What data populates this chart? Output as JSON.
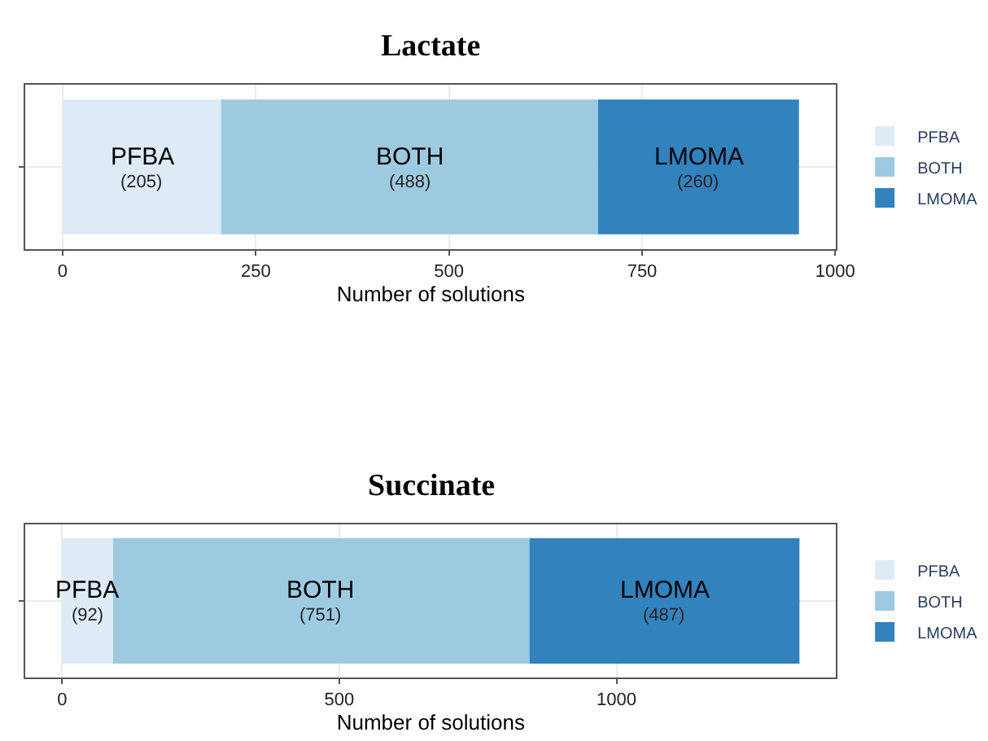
{
  "chart_data": [
    {
      "type": "bar",
      "title": "Lactate",
      "xlabel": "Number of solutions",
      "orientation": "horizontal",
      "stacked": true,
      "categories": [
        null
      ],
      "xlim": [
        -48,
        1001
      ],
      "xticks": [
        0,
        250,
        500,
        750,
        1000
      ],
      "grid": true,
      "legend": "right",
      "tick_labels": "x",
      "series": [
        {
          "name": "PFBA",
          "color": "#deebf7",
          "values": [
            205
          ],
          "value_labels": [
            "(205)"
          ]
        },
        {
          "name": "BOTH",
          "color": "#9ecae1",
          "values": [
            488
          ],
          "value_labels": [
            "(488)"
          ]
        },
        {
          "name": "LMOMA",
          "color": "#3182bd",
          "values": [
            260
          ],
          "value_labels": [
            "(260)"
          ]
        }
      ]
    },
    {
      "type": "bar",
      "title": "Succinate",
      "xlabel": "Number of solutions",
      "orientation": "horizontal",
      "stacked": true,
      "categories": [
        null
      ],
      "xlim": [
        -66,
        1396
      ],
      "xticks": [
        0,
        500,
        1000
      ],
      "grid": true,
      "legend": "right",
      "tick_labels": "x",
      "series": [
        {
          "name": "PFBA",
          "color": "#deebf7",
          "values": [
            92
          ],
          "value_labels": [
            "(92)"
          ]
        },
        {
          "name": "BOTH",
          "color": "#9ecae1",
          "values": [
            751
          ],
          "value_labels": [
            "(751)"
          ]
        },
        {
          "name": "LMOMA",
          "color": "#3182bd",
          "values": [
            487
          ],
          "value_labels": [
            "(487)"
          ]
        }
      ]
    }
  ]
}
